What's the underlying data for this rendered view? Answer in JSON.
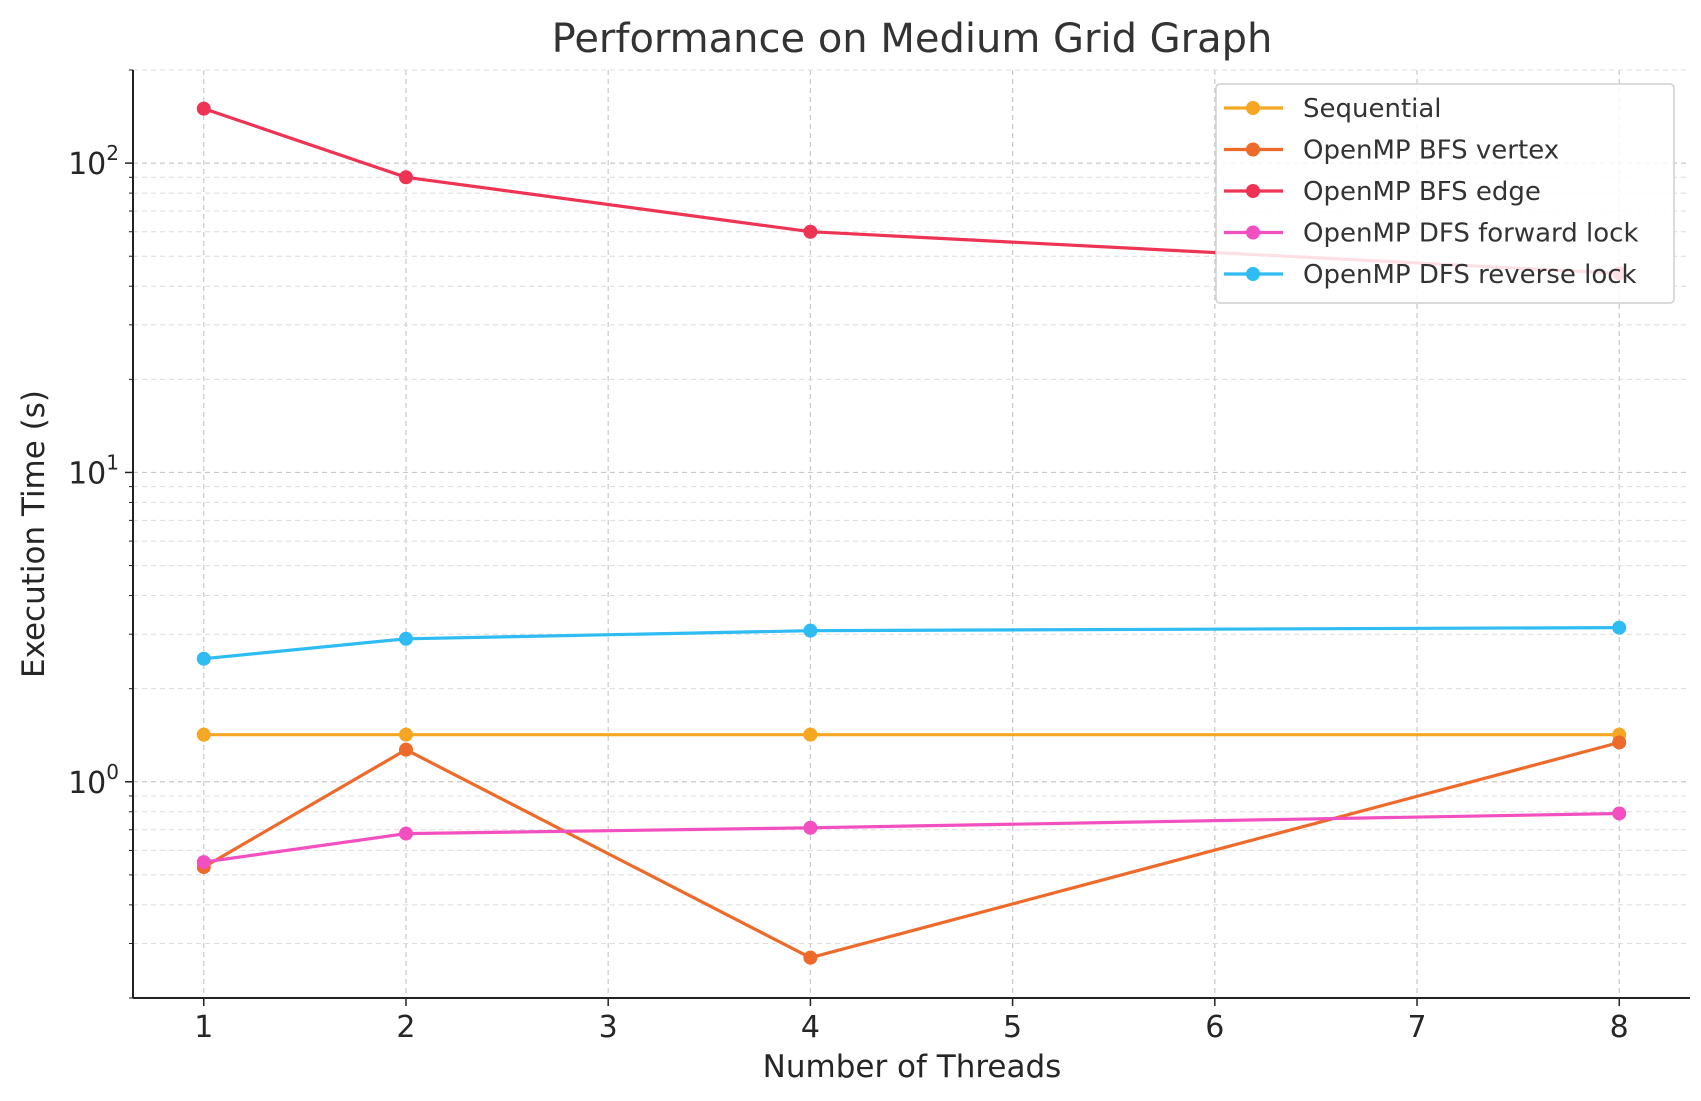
{
  "chart_data": {
    "type": "line",
    "title": "Performance on Medium Grid Graph",
    "xlabel": "Number of Threads",
    "ylabel": "Execution Time (s)",
    "yscale": "log",
    "xlim": [
      0.65,
      8.35
    ],
    "ylim": [
      0.2,
      200
    ],
    "x_ticks": [
      1,
      2,
      3,
      4,
      5,
      6,
      7,
      8
    ],
    "y_ticks": [
      {
        "value": 1,
        "base": "10",
        "exp": "0"
      },
      {
        "value": 10,
        "base": "10",
        "exp": "1"
      },
      {
        "value": 100,
        "base": "10",
        "exp": "2"
      }
    ],
    "grid": true,
    "legend_position": "top-right",
    "x": [
      1,
      2,
      4,
      8
    ],
    "series": [
      {
        "name": "Sequential",
        "color": "#f5a623",
        "values": [
          1.42,
          1.42,
          1.42,
          1.42
        ]
      },
      {
        "name": "OpenMP BFS vertex",
        "color": "#ee6a2a",
        "values": [
          0.53,
          1.27,
          0.27,
          1.34
        ]
      },
      {
        "name": "OpenMP BFS edge",
        "color": "#ef3354",
        "values": [
          150,
          90,
          60,
          44
        ]
      },
      {
        "name": "OpenMP DFS forward lock",
        "color": "#f24fc1",
        "values": [
          0.55,
          0.68,
          0.71,
          0.79
        ]
      },
      {
        "name": "OpenMP DFS reverse lock",
        "color": "#2ebcf2",
        "values": [
          2.5,
          2.9,
          3.08,
          3.15
        ]
      }
    ]
  }
}
